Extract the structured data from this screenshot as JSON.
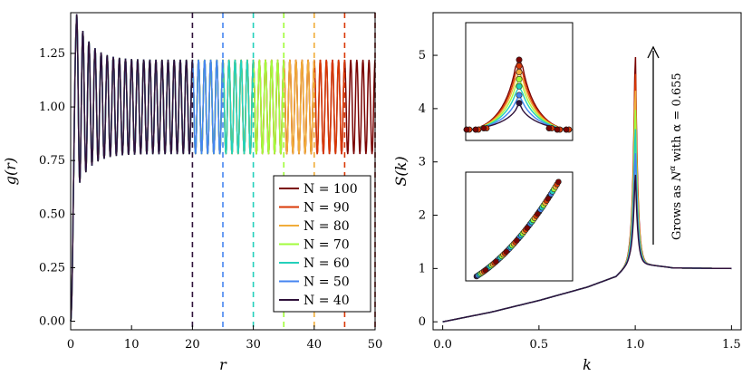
{
  "chart_data": [
    {
      "type": "line",
      "xlabel": "r",
      "ylabel": "g(r)",
      "xlim": [
        0,
        50
      ],
      "ylim": [
        -0.04,
        1.44
      ],
      "xticks": [
        0,
        10,
        20,
        30,
        40,
        50
      ],
      "xtick_labels": [
        "0",
        "10",
        "20",
        "30",
        "40",
        "50"
      ],
      "yticks": [
        0.0,
        0.25,
        0.5,
        0.75,
        1.0,
        1.25
      ],
      "ytick_labels": [
        "0.00",
        "0.25",
        "0.50",
        "0.75",
        "1.00",
        "1.25"
      ],
      "grid": false,
      "legend_position": "lower right",
      "series": [
        {
          "name": "N = 100",
          "color": "#7a0403",
          "r_max": 50,
          "cutoff_line_x": 50
        },
        {
          "name": "N = 90",
          "color": "#d93806",
          "r_max": 45,
          "cutoff_line_x": 45
        },
        {
          "name": "N = 80",
          "color": "#f1ad3a",
          "r_max": 40,
          "cutoff_line_x": 40
        },
        {
          "name": "N = 70",
          "color": "#a2fc3c",
          "r_max": 35,
          "cutoff_line_x": 35
        },
        {
          "name": "N = 60",
          "color": "#24d0bb",
          "r_max": 30,
          "cutoff_line_x": 30
        },
        {
          "name": "N = 50",
          "color": "#4685f0",
          "r_max": 25,
          "cutoff_line_x": 25
        },
        {
          "name": "N = 40",
          "color": "#30123b",
          "r_max": 20,
          "cutoff_line_x": 20
        }
      ],
      "profile": {
        "first_peak": 1.41,
        "first_trough": 0.64,
        "plateau_max": 1.22,
        "plateau_min": 0.78,
        "period": 1.0
      }
    },
    {
      "type": "line",
      "xlabel": "k",
      "ylabel": "S(k)",
      "xlim": [
        -0.05,
        1.55
      ],
      "ylim": [
        -0.15,
        5.8
      ],
      "xticks": [
        0.0,
        0.5,
        1.0,
        1.5
      ],
      "xtick_labels": [
        "0.0",
        "0.5",
        "1.0",
        "1.5"
      ],
      "yticks": [
        0,
        1,
        2,
        3,
        4,
        5
      ],
      "ytick_labels": [
        "0",
        "1",
        "2",
        "3",
        "4",
        "5"
      ],
      "grid": false,
      "peak_heights": [
        {
          "N": 40,
          "height": 3.0
        },
        {
          "N": 50,
          "height": 3.45
        },
        {
          "N": 60,
          "height": 3.95
        },
        {
          "N": 70,
          "height": 4.35
        },
        {
          "N": 80,
          "height": 4.75
        },
        {
          "N": 90,
          "height": 5.1
        },
        {
          "N": 100,
          "height": 5.45
        }
      ],
      "curve": [
        {
          "k": 0.0,
          "S": 0.0
        },
        {
          "k": 0.25,
          "S": 0.18
        },
        {
          "k": 0.5,
          "S": 0.4
        },
        {
          "k": 0.75,
          "S": 0.65
        },
        {
          "k": 0.9,
          "S": 0.85
        },
        {
          "k": 0.97,
          "S": 1.1
        },
        {
          "k": 1.05,
          "S": 1.08
        },
        {
          "k": 1.2,
          "S": 1.01
        },
        {
          "k": 1.5,
          "S": 1.0
        }
      ],
      "annotation": {
        "prefix": "Grows as ",
        "base": "N",
        "exponent": "α",
        "suffix": " with α = 0.655"
      },
      "insets": [
        {
          "name": "peak-collapse-inset"
        },
        {
          "name": "peak-scaling-inset"
        }
      ]
    }
  ]
}
